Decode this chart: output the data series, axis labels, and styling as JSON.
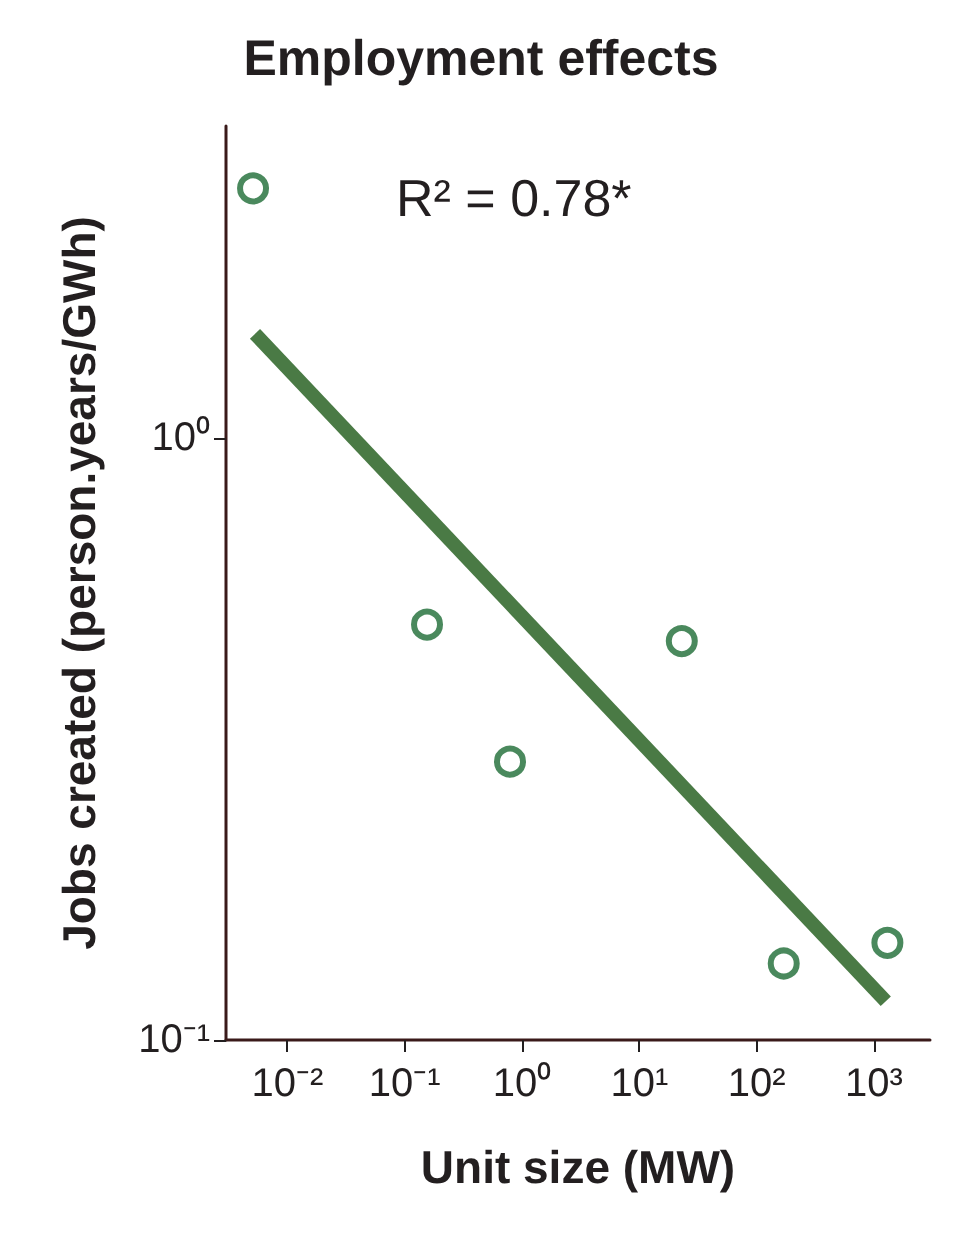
{
  "chart_data": {
    "type": "scatter",
    "title": "Employment effects",
    "xlabel": "Unit size (MW)",
    "ylabel": "Jobs created (person.years/GWh)",
    "annotations": [
      "R² = 0.78*"
    ],
    "log": "xy",
    "xlim": [
      0.003,
      3000
    ],
    "ylim": [
      0.1,
      3.3
    ],
    "xticks": [
      {
        "value": 0.01,
        "label": "10⁻²"
      },
      {
        "value": 0.1,
        "label": "10⁻¹"
      },
      {
        "value": 1,
        "label": "10⁰"
      },
      {
        "value": 10,
        "label": "10¹"
      },
      {
        "value": 100,
        "label": "10²"
      },
      {
        "value": 1000,
        "label": "10³"
      }
    ],
    "yticks": [
      {
        "value": 0.1,
        "label": "10⁻¹"
      },
      {
        "value": 1,
        "label": "10⁰"
      }
    ],
    "grid": false,
    "marker": "circle",
    "series": [
      {
        "color": "#1d6b34",
        "x": [
          0.0051,
          0.155,
          0.79,
          23,
          170,
          1300
        ],
        "values": [
          2.6,
          0.49,
          0.29,
          0.46,
          0.134,
          0.145
        ]
      },
      {
        "type": "line",
        "marker": "none",
        "color": "#4a7a45",
        "x": [
          0.0053,
          1260
        ],
        "values": [
          1.49,
          0.116
        ]
      }
    ]
  }
}
